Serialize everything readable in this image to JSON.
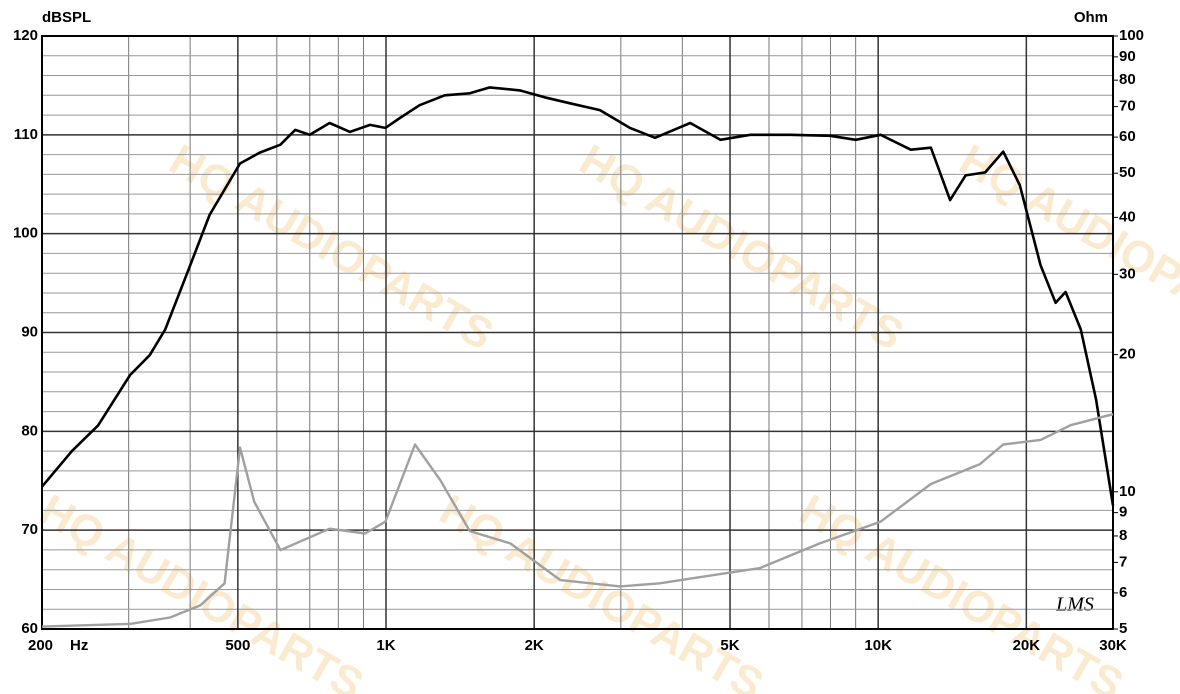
{
  "chart_data": {
    "type": "line",
    "y_label": "dBSPL",
    "y2_label": "Ohm",
    "x_label": "Hz",
    "logo": "LMS",
    "watermark": "HQ AUDIOPARTS",
    "xlim": [
      200,
      30000
    ],
    "x_log": true,
    "xticks": [
      200,
      500,
      {
        "value": 1000,
        "label": "1K"
      },
      {
        "value": 2000,
        "label": "2K"
      },
      {
        "value": 5000,
        "label": "5K"
      },
      {
        "value": 10000,
        "label": "10K"
      },
      {
        "value": 20000,
        "label": "20K"
      },
      {
        "value": 30000,
        "label": "30K"
      }
    ],
    "x_minor_ticks": [
      300,
      400,
      600,
      700,
      800,
      900,
      3000,
      4000,
      6000,
      7000,
      8000,
      9000
    ],
    "ylim": [
      60,
      120
    ],
    "yticks": [
      60,
      70,
      80,
      90,
      100,
      110,
      120
    ],
    "y_minor_ticks": [
      62,
      64,
      66,
      68,
      72,
      74,
      76,
      78,
      82,
      84,
      86,
      88,
      92,
      94,
      96,
      98,
      102,
      104,
      106,
      108,
      112,
      114,
      116,
      118
    ],
    "y2lim": [
      5,
      100
    ],
    "y2_log": true,
    "y2ticks": [
      5,
      6,
      7,
      8,
      9,
      10,
      20,
      30,
      40,
      50,
      60,
      70,
      80,
      90,
      100
    ],
    "grid": true,
    "series": [
      {
        "color": "#000000",
        "x": [
          200,
          230,
          260,
          302,
          331,
          356,
          400,
          438,
          505,
          554,
          610,
          654,
          700,
          768,
          845,
          928,
          997,
          1067,
          1170,
          1316,
          1480,
          1625,
          1870,
          2100,
          2360,
          2720,
          3130,
          3520,
          4150,
          4780,
          5500,
          6630,
          7990,
          9000,
          10120,
          11650,
          12800,
          14000,
          15050,
          16500,
          17950,
          19400,
          21380,
          22930,
          24030,
          25800,
          27720,
          30000
        ],
        "values": [
          74.4,
          78,
          80.6,
          85.7,
          87.7,
          90.3,
          96.8,
          101.9,
          107.1,
          108.2,
          109.0,
          110.5,
          110.0,
          111.2,
          110.3,
          111.0,
          110.7,
          111.7,
          113.0,
          114.0,
          114.2,
          114.8,
          114.5,
          113.8,
          113.2,
          112.5,
          110.7,
          109.7,
          111.2,
          109.5,
          110.0,
          110.0,
          109.9,
          109.5,
          110.0,
          108.5,
          108.7,
          103.4,
          105.9,
          106.2,
          108.3,
          104.9,
          96.8,
          93.0,
          94.1,
          90.3,
          83.2,
          72.5
        ]
      },
      {
        "color": "#a0a0a0",
        "axis": "y2",
        "x": [
          200,
          302,
          364,
          419,
          470,
          505,
          540,
          610,
          768,
          907,
          997,
          1145,
          1290,
          1480,
          1790,
          2260,
          2990,
          3600,
          4350,
          5750,
          7600,
          10120,
          12800,
          16100,
          17950,
          21380,
          24600,
          30000
        ],
        "values": [
          5.06,
          5.13,
          5.3,
          5.63,
          6.3,
          12.5,
          9.5,
          7.45,
          8.3,
          8.1,
          8.6,
          12.7,
          10.6,
          8.2,
          7.7,
          6.4,
          6.2,
          6.3,
          6.5,
          6.8,
          7.7,
          8.6,
          10.4,
          11.5,
          12.7,
          13.0,
          14.0,
          14.8
        ]
      }
    ]
  }
}
